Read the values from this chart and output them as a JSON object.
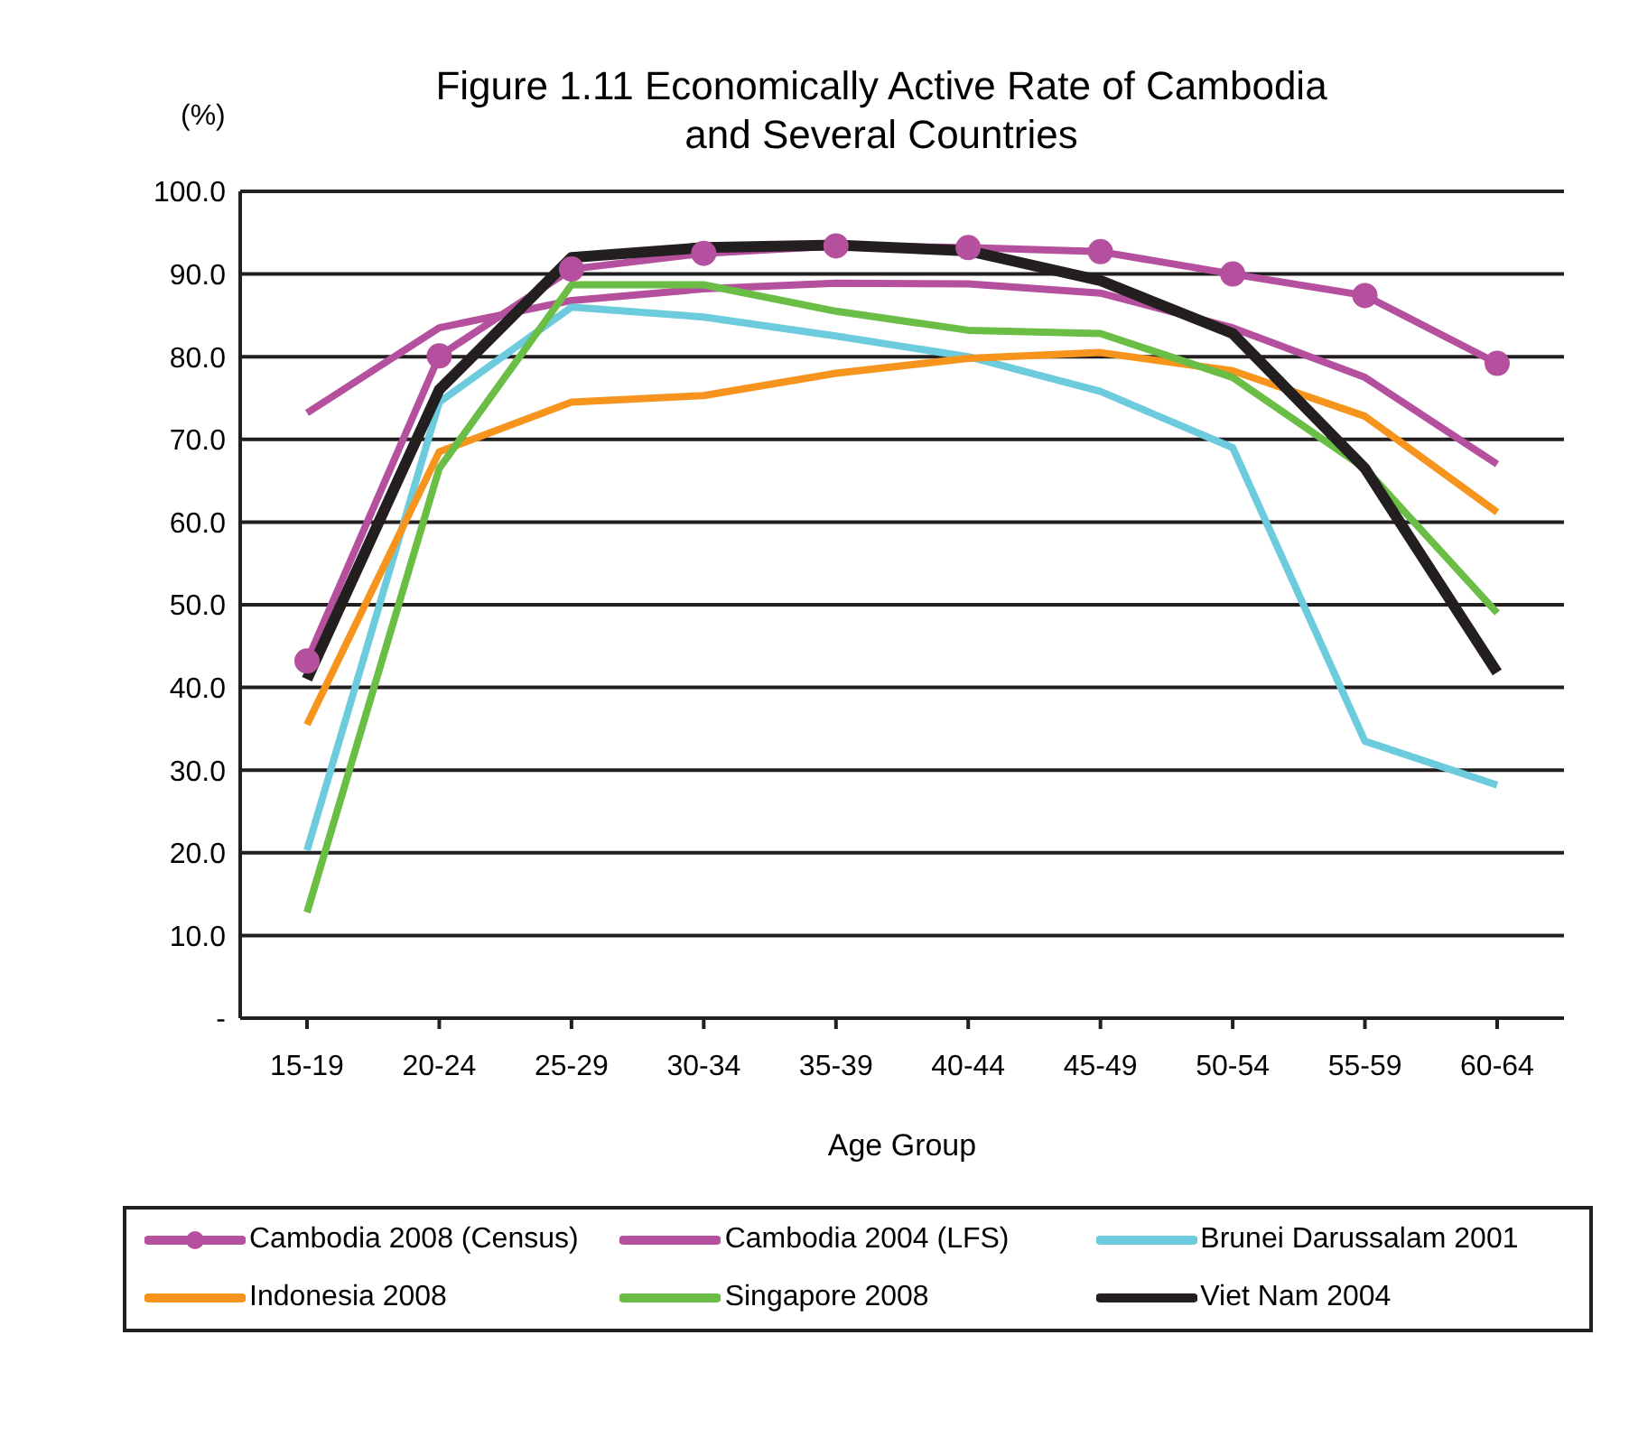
{
  "chart_data": {
    "type": "line",
    "title": "Figure 1.11  Economically Active Rate of Cambodia\nand Several Countries",
    "ylabel": "(%)",
    "xlabel": "Age Group",
    "categories": [
      "15-19",
      "20-24",
      "25-29",
      "30-34",
      "35-39",
      "40-44",
      "45-49",
      "50-54",
      "55-59",
      "60-64"
    ],
    "ylim": [
      0,
      100
    ],
    "yticks": [
      {
        "value": 0,
        "label": "-"
      },
      {
        "value": 10,
        "label": "10.0"
      },
      {
        "value": 20,
        "label": "20.0"
      },
      {
        "value": 30,
        "label": "30.0"
      },
      {
        "value": 40,
        "label": "40.0"
      },
      {
        "value": 50,
        "label": "50.0"
      },
      {
        "value": 60,
        "label": "60.0"
      },
      {
        "value": 70,
        "label": "70.0"
      },
      {
        "value": 80,
        "label": "80.0"
      },
      {
        "value": 90,
        "label": "90.0"
      },
      {
        "value": 100,
        "label": "100.0"
      }
    ],
    "grid": "y",
    "legend": "bottom",
    "marker": "none",
    "line_style": "solid",
    "series": [
      {
        "name": "Cambodia 2008  (Census)",
        "color": "#b5509e",
        "marker": "circle",
        "values": [
          43.2,
          80.1,
          90.6,
          92.5,
          93.4,
          93.2,
          92.7,
          90.0,
          87.4,
          79.2
        ]
      },
      {
        "name": "Cambodia 2004  (LFS)",
        "color": "#b5509e",
        "values": [
          73.2,
          83.5,
          86.8,
          88.2,
          88.9,
          88.8,
          87.7,
          83.5,
          77.5,
          67.0
        ]
      },
      {
        "name": "Brunei Darussalam 2001",
        "color": "#6ccbdc",
        "values": [
          20.3,
          74.5,
          86.0,
          84.8,
          82.5,
          80.0,
          75.8,
          69.0,
          33.5,
          28.2
        ]
      },
      {
        "name": "Indonesia 2008",
        "color": "#f7941d",
        "values": [
          35.5,
          68.5,
          74.5,
          75.3,
          78.0,
          79.8,
          80.5,
          78.3,
          72.8,
          61.2
        ]
      },
      {
        "name": "Singapore 2008",
        "color": "#6abd45",
        "values": [
          12.8,
          66.5,
          88.7,
          88.7,
          85.5,
          83.2,
          82.8,
          77.5,
          66.5,
          49.0
        ]
      },
      {
        "name": "Viet Nam 2004",
        "color": "#231f20",
        "values": [
          41.0,
          76.0,
          92.0,
          93.2,
          93.5,
          92.8,
          89.2,
          82.8,
          66.5,
          41.8
        ]
      }
    ]
  }
}
